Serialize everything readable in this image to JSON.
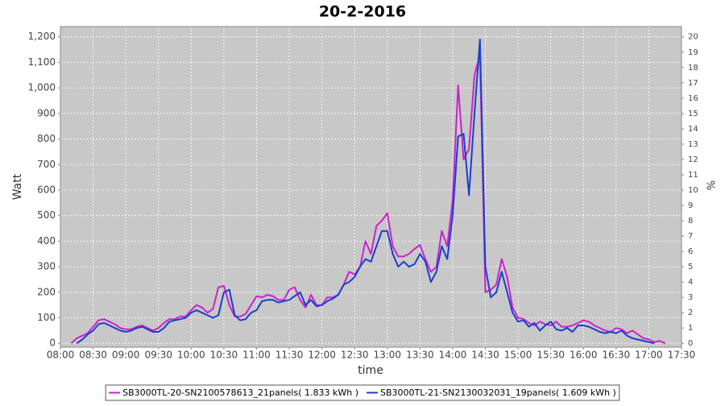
{
  "chart_data": {
    "type": "line",
    "title": "20-2-2016",
    "xlabel": "time",
    "ylabel": "Watt",
    "y2label": "%",
    "x": [
      "08:10",
      "08:15",
      "08:20",
      "08:25",
      "08:30",
      "08:35",
      "08:40",
      "08:45",
      "08:50",
      "08:55",
      "09:00",
      "09:05",
      "09:10",
      "09:15",
      "09:20",
      "09:25",
      "09:30",
      "09:35",
      "09:40",
      "09:45",
      "09:50",
      "09:55",
      "10:00",
      "10:05",
      "10:10",
      "10:15",
      "10:20",
      "10:25",
      "10:30",
      "10:35",
      "10:40",
      "10:45",
      "10:50",
      "10:55",
      "11:00",
      "11:05",
      "11:10",
      "11:15",
      "11:20",
      "11:25",
      "11:30",
      "11:35",
      "11:40",
      "11:45",
      "11:50",
      "11:55",
      "12:00",
      "12:05",
      "12:10",
      "12:15",
      "12:20",
      "12:25",
      "12:30",
      "12:35",
      "12:40",
      "12:45",
      "12:50",
      "12:55",
      "13:00",
      "13:05",
      "13:10",
      "13:15",
      "13:20",
      "13:25",
      "13:30",
      "13:35",
      "13:40",
      "13:45",
      "13:50",
      "13:55",
      "14:00",
      "14:05",
      "14:10",
      "14:15",
      "14:20",
      "14:25",
      "14:30",
      "14:35",
      "14:40",
      "14:45",
      "14:50",
      "14:55",
      "15:00",
      "15:05",
      "15:10",
      "15:15",
      "15:20",
      "15:25",
      "15:30",
      "15:35",
      "15:40",
      "15:45",
      "15:50",
      "15:55",
      "16:00",
      "16:05",
      "16:10",
      "16:15",
      "16:20",
      "16:25",
      "16:30",
      "16:35",
      "16:40",
      "16:45",
      "16:50",
      "16:55",
      "17:00",
      "17:05",
      "17:10",
      "17:15"
    ],
    "xlim": [
      "08:00",
      "17:30"
    ],
    "xticks": [
      "08:00",
      "08:30",
      "09:00",
      "09:30",
      "10:00",
      "10:30",
      "11:00",
      "11:30",
      "12:00",
      "12:30",
      "13:00",
      "13:30",
      "14:00",
      "14:30",
      "15:00",
      "15:30",
      "16:00",
      "16:30",
      "17:00",
      "17:30"
    ],
    "ylim": [
      -15,
      1240
    ],
    "yticks": [
      0,
      100,
      200,
      300,
      400,
      500,
      600,
      700,
      800,
      900,
      {
        "value": 1000,
        "label": "1,000"
      },
      {
        "value": 1100,
        "label": "1,100"
      },
      {
        "value": 1200,
        "label": "1,200"
      }
    ],
    "y2lim": [
      -0.25,
      20.67
    ],
    "y2ticks": [
      0,
      1,
      2,
      3,
      4,
      5,
      6,
      7,
      8,
      9,
      10,
      11,
      12,
      13,
      14,
      15,
      16,
      17,
      18,
      19,
      20
    ],
    "grid": true,
    "legend": "bottom",
    "series": [
      {
        "name": "SB3000TL-20-SN2100578613_21panels( 1.833 kWh )",
        "color": "#cc22cc",
        "values": [
          0,
          20,
          30,
          40,
          65,
          90,
          95,
          85,
          75,
          60,
          55,
          55,
          65,
          70,
          60,
          50,
          60,
          80,
          95,
          95,
          105,
          105,
          130,
          150,
          140,
          120,
          135,
          220,
          225,
          150,
          105,
          105,
          115,
          150,
          185,
          180,
          190,
          185,
          170,
          170,
          210,
          220,
          170,
          140,
          190,
          150,
          150,
          180,
          180,
          190,
          230,
          280,
          270,
          300,
          400,
          350,
          460,
          480,
          510,
          380,
          340,
          340,
          350,
          370,
          385,
          330,
          280,
          300,
          440,
          380,
          560,
          1010,
          720,
          760,
          1050,
          1130,
          200,
          210,
          230,
          330,
          260,
          140,
          100,
          95,
          80,
          70,
          85,
          75,
          70,
          85,
          65,
          65,
          70,
          80,
          90,
          85,
          70,
          60,
          50,
          45,
          60,
          55,
          40,
          50,
          35,
          20,
          15,
          5,
          10,
          0
        ]
      },
      {
        "name": "SB3000TL-21-SN2130032031_19panels( 1.609 kWh )",
        "color": "#1a3fcc",
        "values": [
          null,
          0,
          15,
          35,
          50,
          75,
          80,
          70,
          60,
          50,
          45,
          50,
          60,
          65,
          55,
          45,
          45,
          60,
          85,
          90,
          95,
          100,
          120,
          130,
          120,
          110,
          100,
          110,
          200,
          210,
          110,
          90,
          95,
          120,
          130,
          165,
          170,
          170,
          160,
          165,
          170,
          185,
          200,
          150,
          170,
          145,
          150,
          165,
          175,
          190,
          230,
          240,
          260,
          300,
          330,
          320,
          380,
          440,
          440,
          350,
          300,
          320,
          300,
          310,
          350,
          320,
          240,
          280,
          380,
          330,
          500,
          810,
          820,
          580,
          900,
          1190,
          300,
          180,
          200,
          280,
          200,
          120,
          85,
          90,
          65,
          80,
          50,
          70,
          85,
          55,
          50,
          60,
          45,
          70,
          70,
          65,
          55,
          45,
          40,
          45,
          40,
          50,
          30,
          20,
          15,
          10,
          5,
          0,
          null,
          null
        ]
      }
    ]
  }
}
